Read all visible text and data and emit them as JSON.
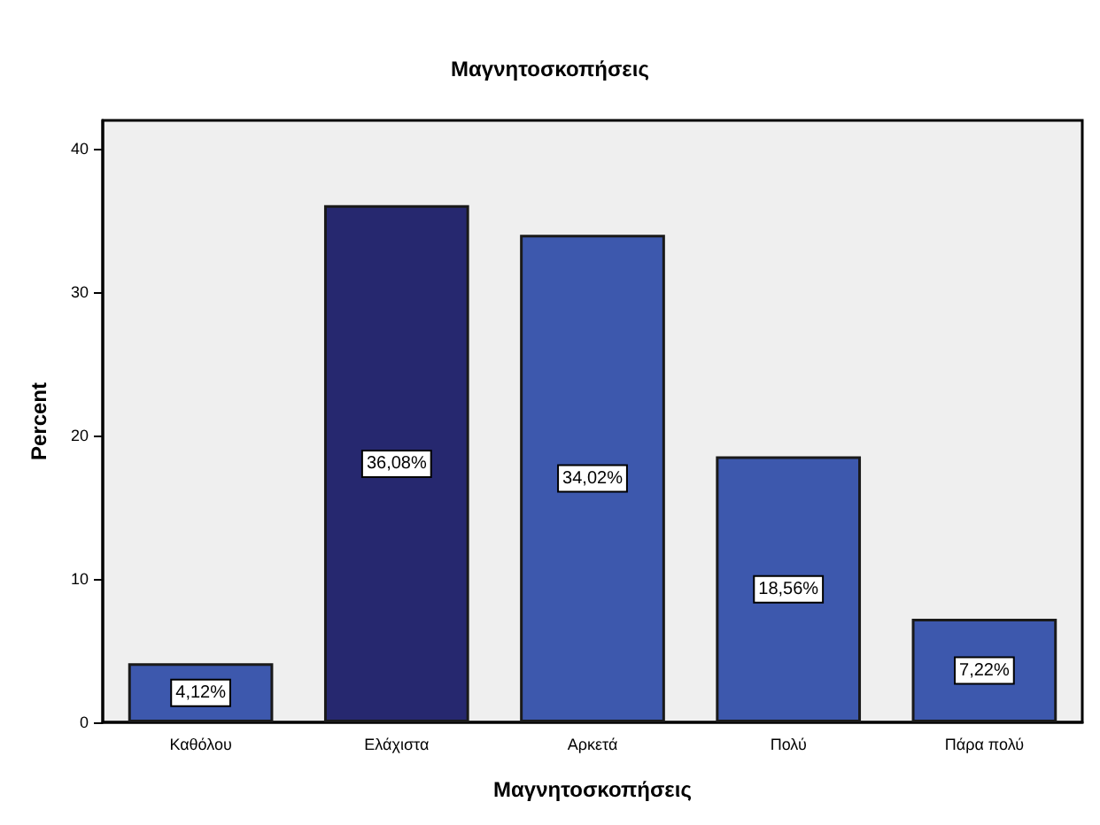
{
  "chart_data": {
    "type": "bar",
    "title": "Μαγνητοσκοπήσεις",
    "xlabel": "Μαγνητοσκοπήσεις",
    "ylabel": "Percent",
    "categories": [
      "Καθόλου",
      "Ελάχιστα",
      "Αρκετά",
      "Πολύ",
      "Πάρα πολύ"
    ],
    "values": [
      4.12,
      36.08,
      34.02,
      18.56,
      7.22
    ],
    "value_labels": [
      "4,12%",
      "36,08%",
      "34,02%",
      "18,56%",
      "7,22%"
    ],
    "colors": [
      "#3d58ad",
      "#26286f",
      "#3d58ad",
      "#3d58ad",
      "#3d58ad"
    ],
    "ylim": [
      0,
      42
    ],
    "yticks": [
      0,
      10,
      20,
      30,
      40
    ],
    "grid": false
  }
}
